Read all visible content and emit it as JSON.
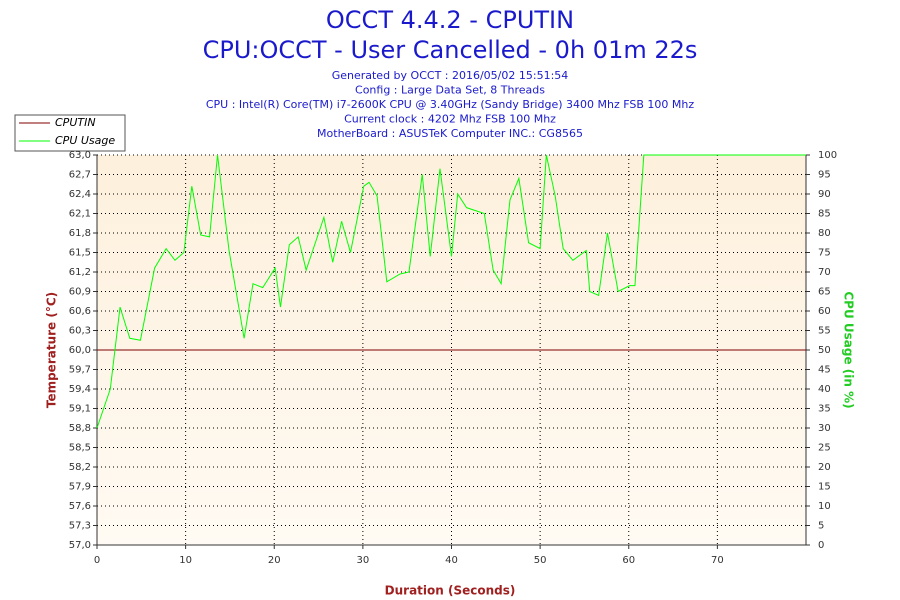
{
  "chart_data": {
    "type": "line",
    "title": "OCCT 4.4.2 - CPUTIN",
    "title2": "CPU:OCCT - User Cancelled - 0h 01m 22s",
    "subtitle": [
      "Generated by OCCT : 2016/05/02 15:51:54",
      "Config : Large Data Set, 8 Threads",
      "CPU : Intel(R) Core(TM) i7-2600K CPU @ 3.40GHz (Sandy Bridge) 3400 Mhz FSB 100 Mhz",
      "Current clock : 4202 Mhz FSB 100 Mhz",
      "MotherBoard : ASUSTeK Computer INC.: CG8565"
    ],
    "xlabel": "Duration (Seconds)",
    "ylabel": "Temperature (°C)",
    "y2label": "CPU Usage (in %)",
    "xlim": [
      0,
      80
    ],
    "xticks": [
      0,
      10,
      20,
      30,
      40,
      50,
      60,
      70
    ],
    "ylim": [
      57.0,
      63.0
    ],
    "yticks": [
      {
        "value": 57.0,
        "label": "57,0"
      },
      {
        "value": 57.3,
        "label": "57,3"
      },
      {
        "value": 57.6,
        "label": "57,6"
      },
      {
        "value": 57.9,
        "label": "57,9"
      },
      {
        "value": 58.2,
        "label": "58,2"
      },
      {
        "value": 58.5,
        "label": "58,5"
      },
      {
        "value": 58.8,
        "label": "58,8"
      },
      {
        "value": 59.1,
        "label": "59,1"
      },
      {
        "value": 59.4,
        "label": "59,4"
      },
      {
        "value": 59.7,
        "label": "59,7"
      },
      {
        "value": 60.0,
        "label": "60,0"
      },
      {
        "value": 60.3,
        "label": "60,3"
      },
      {
        "value": 60.6,
        "label": "60,6"
      },
      {
        "value": 60.9,
        "label": "60,9"
      },
      {
        "value": 61.2,
        "label": "61,2"
      },
      {
        "value": 61.5,
        "label": "61,5"
      },
      {
        "value": 61.8,
        "label": "61,8"
      },
      {
        "value": 62.1,
        "label": "62,1"
      },
      {
        "value": 62.4,
        "label": "62,4"
      },
      {
        "value": 62.7,
        "label": "62,7"
      },
      {
        "value": 63.0,
        "label": "63,0"
      }
    ],
    "y2lim": [
      0,
      100
    ],
    "y2ticks": [
      0,
      5,
      10,
      15,
      20,
      25,
      30,
      35,
      40,
      45,
      50,
      55,
      60,
      65,
      70,
      75,
      80,
      85,
      90,
      95,
      100
    ],
    "grid": true,
    "legend": "top-left",
    "series": [
      {
        "name": "CPUTIN",
        "color": "#800000",
        "x": [
          0,
          80
        ],
        "values": [
          60.0,
          60.0
        ]
      },
      {
        "name": "CPU Usage",
        "color": "#00ff00",
        "axis": "y2",
        "x": [
          0,
          1.5,
          2.6,
          3.7,
          4.9,
          6.5,
          7.8,
          8.8,
          9.8,
          10.7,
          11.7,
          12.7,
          13.6,
          14.9,
          16.6,
          17.6,
          18.7,
          20.1,
          20.7,
          21.7,
          22.7,
          23.6,
          25.6,
          26.6,
          27.6,
          28.6,
          30.1,
          30.7,
          31.6,
          32.7,
          34.2,
          35.2,
          36.7,
          37.6,
          38.7,
          40.0,
          40.7,
          41.7,
          43.7,
          44.7,
          45.6,
          46.6,
          47.6,
          48.7,
          50.0,
          50.7,
          51.7,
          52.6,
          53.7,
          55.2,
          55.6,
          56.6,
          57.6,
          58.8,
          60.1,
          60.7,
          61.7,
          80
        ],
        "values": [
          30,
          40,
          61,
          53,
          52.5,
          71,
          76,
          73,
          75,
          92,
          79.5,
          79,
          100,
          75.5,
          53,
          67,
          66,
          71,
          61,
          77,
          79,
          70.5,
          84,
          72.5,
          83,
          75,
          92,
          93,
          89.5,
          67.5,
          69.5,
          70,
          95,
          74,
          96.5,
          74,
          90,
          86.5,
          85,
          70.5,
          67,
          88.5,
          94,
          77.5,
          76,
          100,
          89.5,
          76,
          73,
          75.5,
          65,
          64,
          80,
          65,
          66.5,
          66.5,
          100,
          100
        ]
      }
    ]
  }
}
